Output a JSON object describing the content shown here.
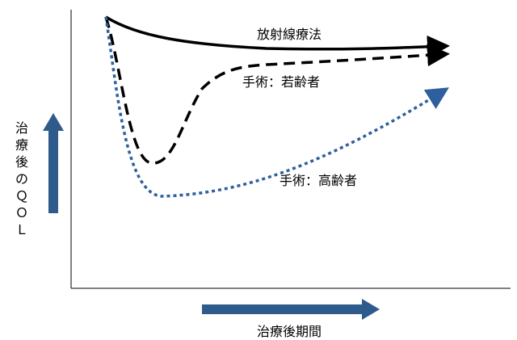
{
  "chart_data": {
    "type": "line",
    "xlabel": "治療後期間",
    "ylabel": "治療後のＱＯＬ",
    "ylabel_chars": [
      "治",
      "療",
      "後",
      "の",
      "Ｑ",
      "Ｏ",
      "Ｌ"
    ],
    "axis_ticks": false,
    "series": [
      {
        "name": "放射線療法",
        "style": "solid",
        "color": "#000000"
      },
      {
        "name": "手術：若齢者",
        "style": "dashed",
        "color": "#000000"
      },
      {
        "name": "手術：高齢者",
        "style": "dotted",
        "color": "#2e5f9e"
      }
    ]
  },
  "colors": {
    "axis": "#000000",
    "arrow": "#2e5a8c",
    "elderly": "#2e5f9e"
  }
}
